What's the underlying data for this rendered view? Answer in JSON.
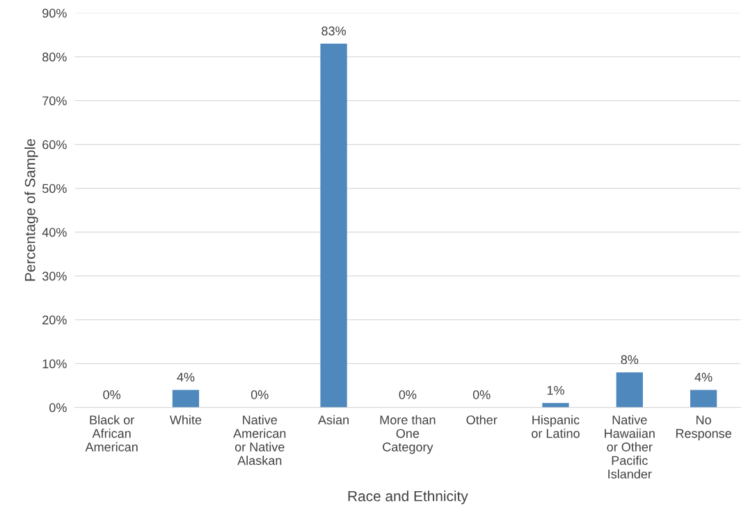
{
  "chart_data": {
    "type": "bar",
    "xlabel": "Race and Ethnicity",
    "ylabel": "Percentage of Sample",
    "categories": [
      "Black or\nAfrican\nAmerican",
      "White",
      "Native\nAmerican\nor Native\nAlaskan",
      "Asian",
      "More than\nOne\nCategory",
      "Other",
      "Hispanic\nor Latino",
      "Native\nHawaiian\nor Other\nPacific\nIslander",
      "No\nResponse"
    ],
    "values": [
      0,
      4,
      0,
      83,
      0,
      0,
      1,
      8,
      4
    ],
    "value_labels": [
      "0%",
      "4%",
      "0%",
      "83%",
      "0%",
      "0%",
      "1%",
      "8%",
      "4%"
    ],
    "color": "#4f88bd",
    "ylim": [
      0,
      90
    ],
    "yticks": [
      {
        "value": 0,
        "label": "0%"
      },
      {
        "value": 10,
        "label": "10%"
      },
      {
        "value": 20,
        "label": "20%"
      },
      {
        "value": 30,
        "label": "30%"
      },
      {
        "value": 40,
        "label": "40%"
      },
      {
        "value": 50,
        "label": "50%"
      },
      {
        "value": 60,
        "label": "60%"
      },
      {
        "value": 70,
        "label": "70%"
      },
      {
        "value": 80,
        "label": "80%"
      },
      {
        "value": 90,
        "label": "90%"
      }
    ],
    "grid": "y",
    "legend": false
  }
}
